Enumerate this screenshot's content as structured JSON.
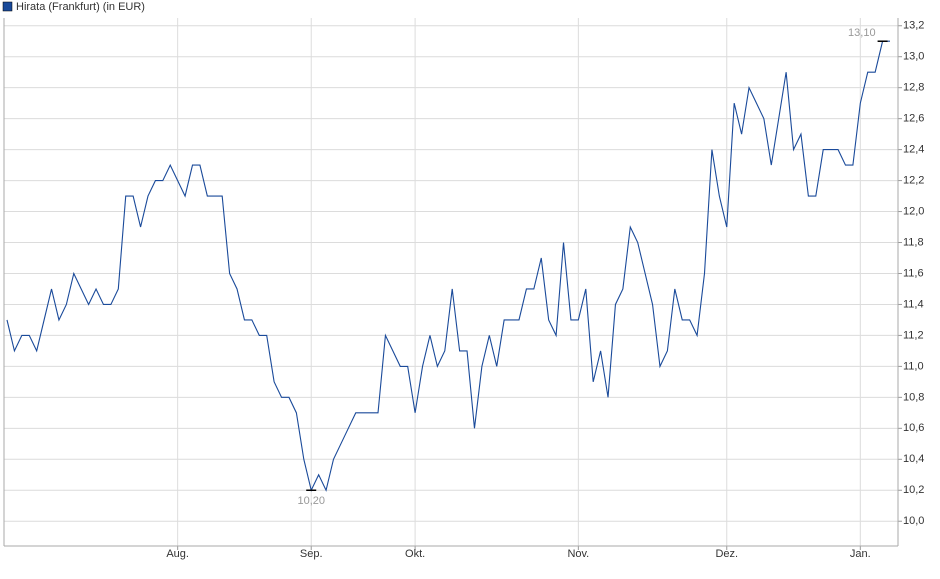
{
  "chart_data": {
    "type": "line",
    "series": [
      {
        "name": "Hirata (Frankfurt) (in EUR)",
        "color": "#1a4a9a",
        "values": [
          11.3,
          11.1,
          11.2,
          11.2,
          11.1,
          11.3,
          11.5,
          11.3,
          11.4,
          11.6,
          11.5,
          11.4,
          11.5,
          11.4,
          11.4,
          11.5,
          12.1,
          12.1,
          11.9,
          12.1,
          12.2,
          12.2,
          12.3,
          12.2,
          12.1,
          12.3,
          12.3,
          12.1,
          12.1,
          12.1,
          11.6,
          11.5,
          11.3,
          11.3,
          11.2,
          11.2,
          10.9,
          10.8,
          10.8,
          10.7,
          10.4,
          10.2,
          10.3,
          10.2,
          10.4,
          10.5,
          10.6,
          10.7,
          10.7,
          10.7,
          10.7,
          11.2,
          11.1,
          11.0,
          11.0,
          10.7,
          11.0,
          11.2,
          11.0,
          11.1,
          11.5,
          11.1,
          11.1,
          10.6,
          11.0,
          11.2,
          11.0,
          11.3,
          11.3,
          11.3,
          11.5,
          11.5,
          11.7,
          11.3,
          11.2,
          11.8,
          11.3,
          11.3,
          11.5,
          10.9,
          11.1,
          10.8,
          11.4,
          11.5,
          11.9,
          11.8,
          11.6,
          11.4,
          11.0,
          11.1,
          11.5,
          11.3,
          11.3,
          11.2,
          11.6,
          12.4,
          12.1,
          11.9,
          12.7,
          12.5,
          12.8,
          12.7,
          12.6,
          12.3,
          12.6,
          12.9,
          12.4,
          12.5,
          12.1,
          12.1,
          12.4,
          12.4,
          12.4,
          12.3,
          12.3,
          12.7,
          12.9,
          12.9,
          13.1,
          13.1
        ]
      }
    ],
    "categories": [
      null,
      null,
      null,
      null,
      null,
      null,
      null,
      null,
      null,
      null,
      null,
      null,
      null,
      null,
      null,
      null,
      null,
      null,
      null,
      null,
      null,
      null,
      null,
      "Aug.",
      null,
      null,
      null,
      null,
      null,
      null,
      null,
      null,
      null,
      null,
      null,
      null,
      null,
      null,
      null,
      null,
      null,
      "Sep.",
      null,
      null,
      null,
      null,
      null,
      null,
      null,
      null,
      null,
      null,
      null,
      null,
      null,
      "Okt.",
      null,
      null,
      null,
      null,
      null,
      null,
      null,
      null,
      null,
      null,
      null,
      null,
      null,
      null,
      null,
      null,
      null,
      null,
      null,
      null,
      null,
      "Nov.",
      null,
      null,
      null,
      null,
      null,
      null,
      null,
      null,
      null,
      null,
      null,
      null,
      null,
      null,
      null,
      null,
      null,
      null,
      null,
      "Dez.",
      null,
      null,
      null,
      null,
      null,
      null,
      null,
      null,
      null,
      null,
      null,
      null,
      null,
      null,
      null,
      null,
      null,
      "Jan.",
      null,
      null,
      null,
      null
    ],
    "ylim": [
      9.84,
      13.25
    ],
    "yticks": [
      {
        "value": 10.0,
        "label": "10,0"
      },
      {
        "value": 10.2,
        "label": "10,2"
      },
      {
        "value": 10.4,
        "label": "10,4"
      },
      {
        "value": 10.6,
        "label": "10,6"
      },
      {
        "value": 10.8,
        "label": "10,8"
      },
      {
        "value": 11.0,
        "label": "11,0"
      },
      {
        "value": 11.2,
        "label": "11,2"
      },
      {
        "value": 11.4,
        "label": "11,4"
      },
      {
        "value": 11.6,
        "label": "11,6"
      },
      {
        "value": 11.8,
        "label": "11,8"
      },
      {
        "value": 12.0,
        "label": "12,0"
      },
      {
        "value": 12.2,
        "label": "12,2"
      },
      {
        "value": 12.4,
        "label": "12,4"
      },
      {
        "value": 12.6,
        "label": "12,6"
      },
      {
        "value": 12.8,
        "label": "12,8"
      },
      {
        "value": 13.0,
        "label": "13,0"
      },
      {
        "value": 13.2,
        "label": "13,2"
      }
    ],
    "annotations": [
      {
        "value": 13.1,
        "label": "13,10"
      },
      {
        "value": 10.2,
        "label": "10,20"
      }
    ],
    "grid": true
  }
}
